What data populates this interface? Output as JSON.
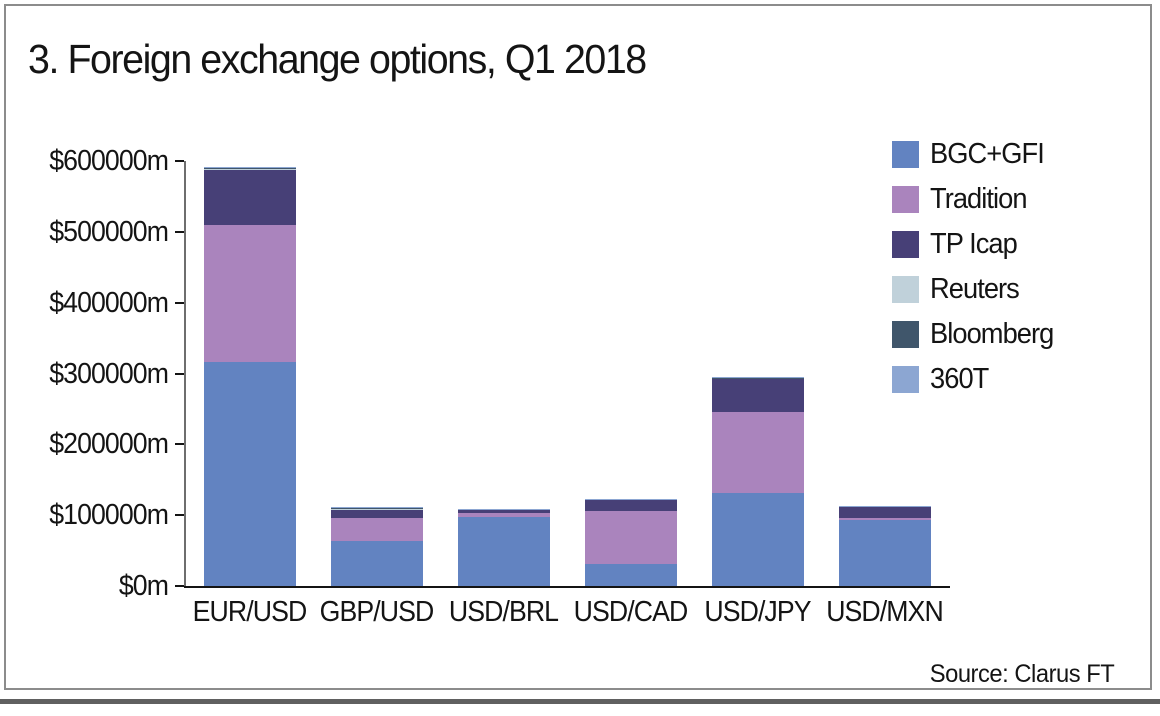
{
  "source": "Source: Clarus FT",
  "chart_data": {
    "type": "bar",
    "stacked": true,
    "title": "3. Foreign exchange options, Q1 2018",
    "categories": [
      "EUR/USD",
      "GBP/USD",
      "USD/BRL",
      "USD/CAD",
      "USD/JPY",
      "USD/MXN"
    ],
    "series": [
      {
        "name": "BGC+GFI",
        "color": "#6283c1",
        "values": [
          316000,
          63000,
          97000,
          31000,
          131000,
          93000
        ]
      },
      {
        "name": "Tradition",
        "color": "#aa84bd",
        "values": [
          193000,
          33000,
          5500,
          75000,
          114000,
          2500
        ]
      },
      {
        "name": "TP Icap",
        "color": "#474077",
        "values": [
          79000,
          12000,
          5500,
          16000,
          48000,
          17000
        ]
      },
      {
        "name": "Reuters",
        "color": "#c0d1da",
        "values": [
          1200,
          1000,
          400,
          500,
          500,
          200
        ]
      },
      {
        "name": "Bloomberg",
        "color": "#40566b",
        "values": [
          500,
          500,
          200,
          300,
          400,
          100
        ]
      },
      {
        "name": "360T",
        "color": "#8ca6d2",
        "values": [
          1500,
          1500,
          400,
          700,
          600,
          200
        ]
      }
    ],
    "ylim": [
      0,
      600000
    ],
    "ytick_step": 100000,
    "ytick_labels": [
      "$0m",
      "$100000m",
      "$200000m",
      "$300000m",
      "$400000m",
      "$500000m",
      "$600000m"
    ],
    "unit": "$m",
    "legend_position": "right",
    "grid": false
  }
}
